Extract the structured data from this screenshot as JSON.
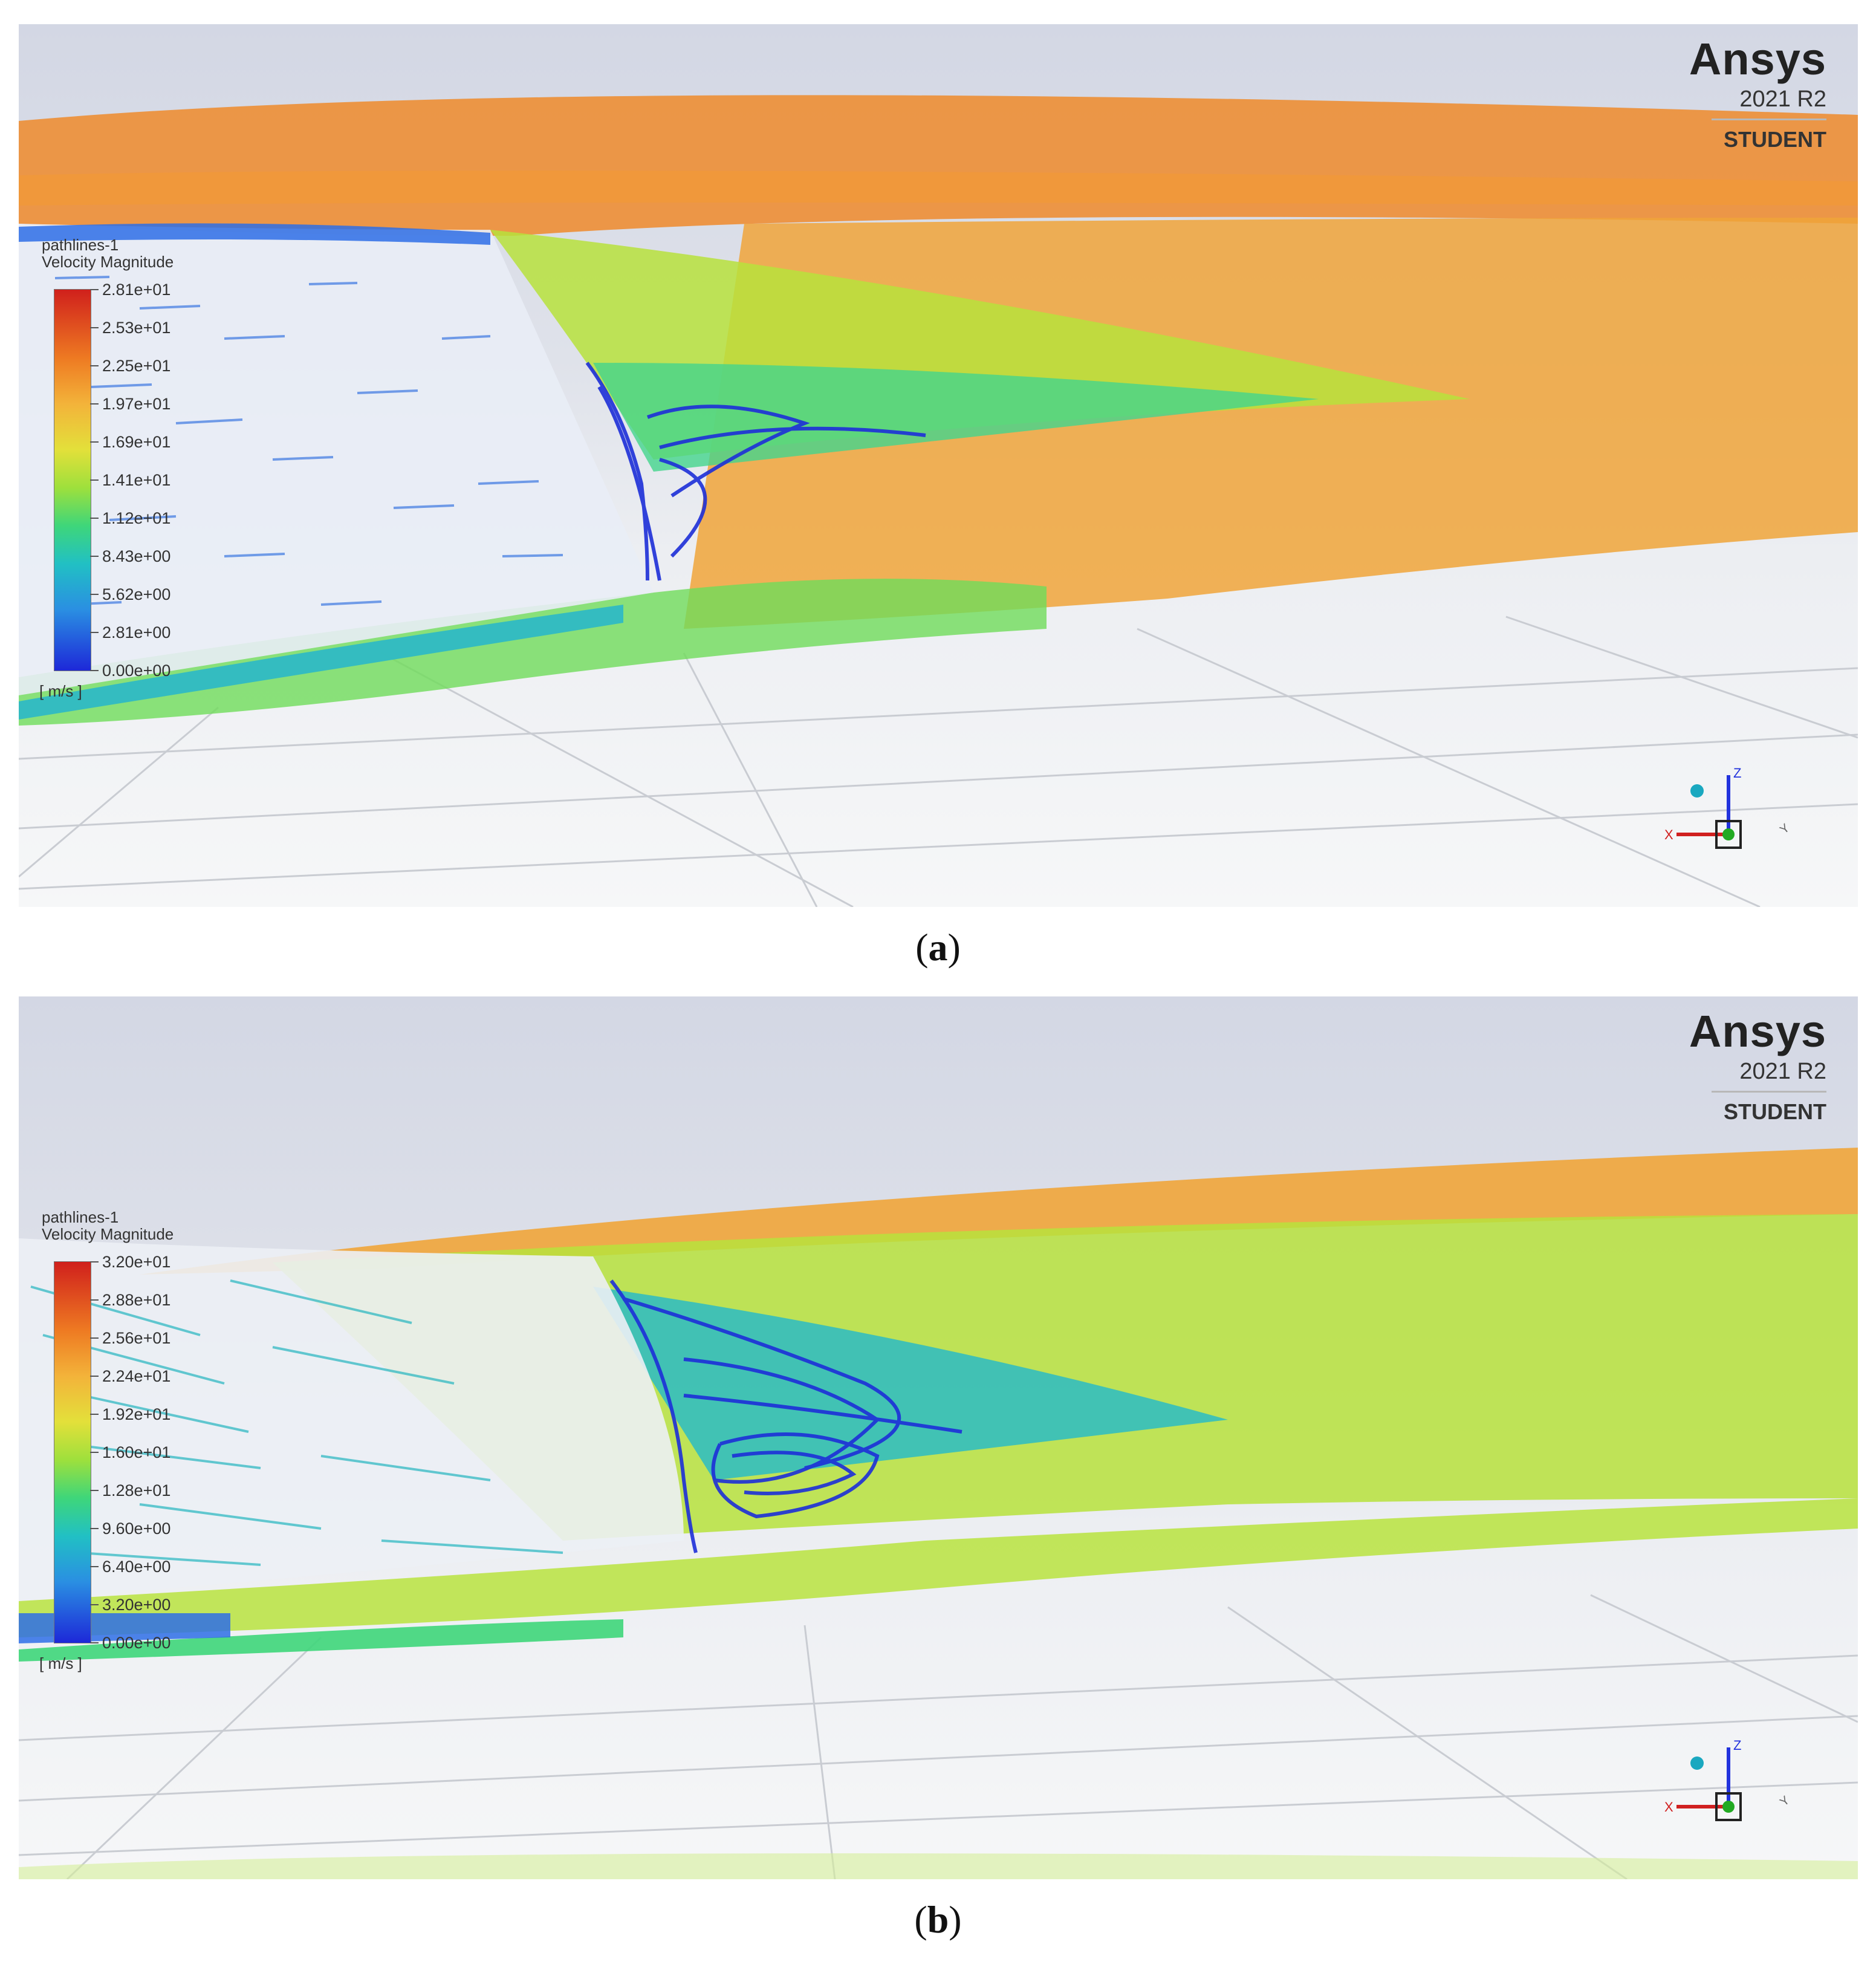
{
  "panels": [
    {
      "id": "a",
      "caption_letter": "a",
      "brand": {
        "name": "Ansys",
        "version": "2021 R2",
        "edition": "STUDENT"
      },
      "legend": {
        "object": "pathlines-1",
        "variable": "Velocity Magnitude",
        "ticks": [
          "2.81e+01",
          "2.53e+01",
          "2.25e+01",
          "1.97e+01",
          "1.69e+01",
          "1.41e+01",
          "1.12e+01",
          "8.43e+00",
          "5.62e+00",
          "2.81e+00",
          "0.00e+00"
        ],
        "unit": "[ m/s ]"
      },
      "triad": {
        "x": "X",
        "y": "Y",
        "z": "Z"
      }
    },
    {
      "id": "b",
      "caption_letter": "b",
      "brand": {
        "name": "Ansys",
        "version": "2021 R2",
        "edition": "STUDENT"
      },
      "legend": {
        "object": "pathlines-1",
        "variable": "Velocity Magnitude",
        "ticks": [
          "3.20e+01",
          "2.88e+01",
          "2.56e+01",
          "2.24e+01",
          "1.92e+01",
          "1.60e+01",
          "1.28e+01",
          "9.60e+00",
          "6.40e+00",
          "3.20e+00",
          "0.00e+00"
        ],
        "unit": "[ m/s ]"
      },
      "triad": {
        "x": "X",
        "y": "Y",
        "z": "Z"
      }
    }
  ],
  "colors": {
    "slow": "#1d28d8",
    "mid_low": "#21c0c4",
    "mid": "#9ee03c",
    "mid_high": "#f3b33a",
    "fast": "#ee7a22",
    "max": "#d0201c"
  }
}
